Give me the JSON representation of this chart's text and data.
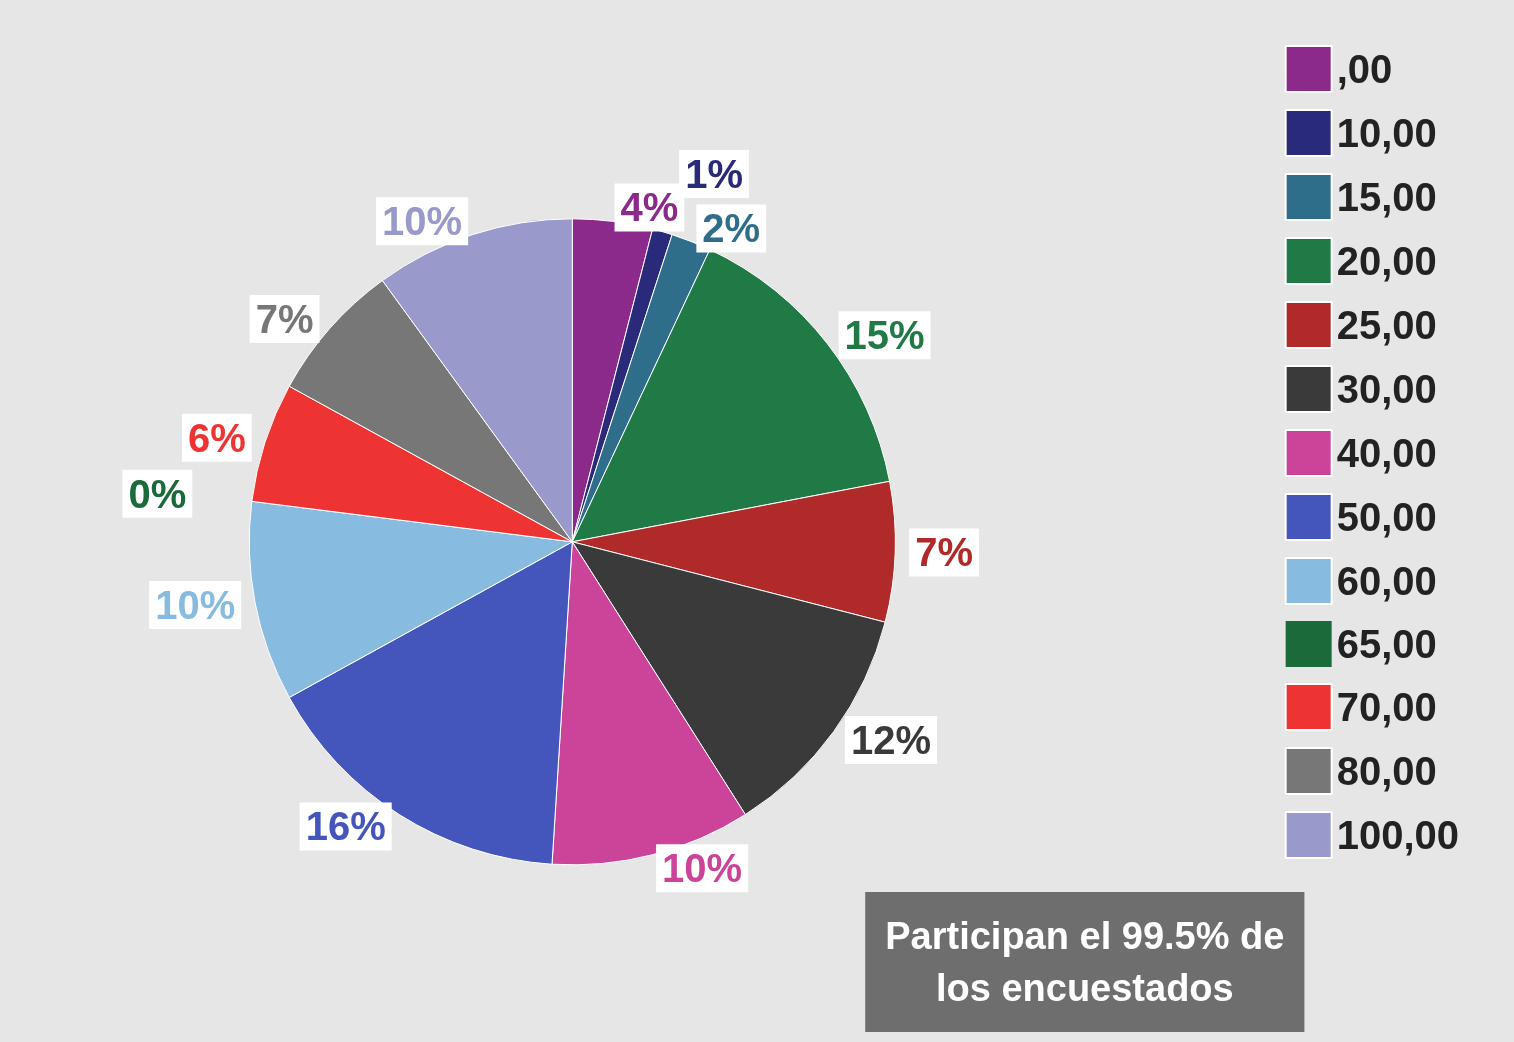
{
  "chart_data": {
    "type": "pie",
    "categories": [
      ",00",
      "10,00",
      "15,00",
      "20,00",
      "25,00",
      "30,00",
      "40,00",
      "50,00",
      "60,00",
      "65,00",
      "70,00",
      "80,00",
      "100,00"
    ],
    "values": [
      4,
      1,
      2,
      15,
      7,
      12,
      10,
      16,
      10,
      0,
      6,
      7,
      10
    ],
    "value_labels": [
      "4%",
      "1%",
      "2%",
      "15%",
      "7%",
      "12%",
      "10%",
      "16%",
      "10%",
      "0%",
      "6%",
      "7%",
      "10%"
    ],
    "colors": [
      "#8b2a8b",
      "#2a2a7a",
      "#2e6e8a",
      "#1f7a45",
      "#b02a2a",
      "#3a3a3a",
      "#cc4499",
      "#4455bb",
      "#88bbe0",
      "#1a6a3a",
      "#ee3333",
      "#777777",
      "#9999cc"
    ],
    "legend": "right",
    "annotations": [
      "Participan el 99.5% de los encuestados"
    ]
  }
}
